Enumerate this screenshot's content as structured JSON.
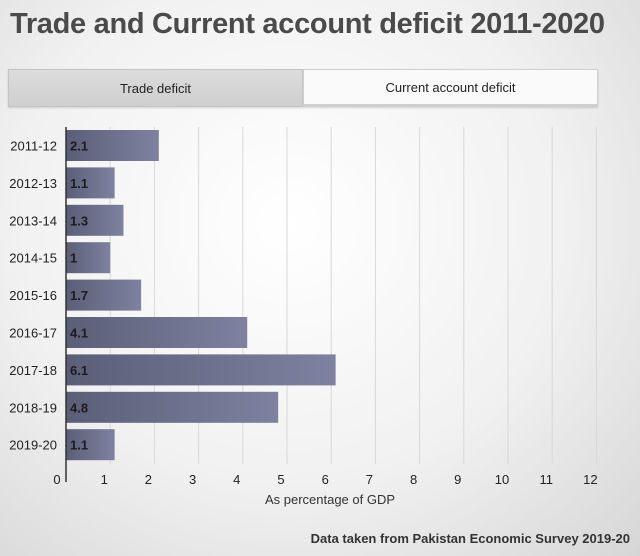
{
  "title": "Trade and Current account deficit 2011-2020",
  "tabs": [
    {
      "label": "Trade deficit",
      "active": false
    },
    {
      "label": "Current account deficit",
      "active": true
    }
  ],
  "source_note": "Data taken from Pakistan Economic Survey 2019-20",
  "chart_data": {
    "type": "bar",
    "orientation": "horizontal",
    "categories": [
      "2011-12",
      "2012-13",
      "2013-14",
      "2014-15",
      "2015-16",
      "2016-17",
      "2017-18",
      "2018-19",
      "2019-20"
    ],
    "values": [
      2.1,
      1.1,
      1.3,
      1,
      1.7,
      4.1,
      6.1,
      4.8,
      1.1
    ],
    "data_labels": [
      "2.1",
      "1.1",
      "1.3",
      "1",
      "1.7",
      "4.1",
      "6.1",
      "4.8",
      "1.1"
    ],
    "xlabel": "As percentage of GDP",
    "ylabel": "",
    "xlim": [
      0,
      12
    ],
    "xticks": [
      "0",
      "1",
      "2",
      "3",
      "4",
      "5",
      "6",
      "7",
      "8",
      "9",
      "10",
      "11",
      "12"
    ],
    "grid": true,
    "bar_color": "#7e82a0",
    "bar_color_highlight": "#5a5e77"
  }
}
